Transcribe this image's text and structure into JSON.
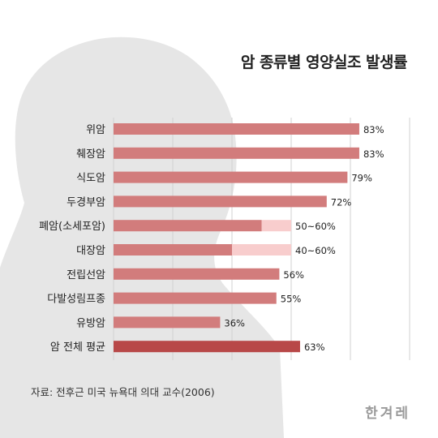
{
  "chart_data": {
    "type": "bar",
    "orientation": "horizontal",
    "title": "암 종류별 영양실조 발생률",
    "categories": [
      "위암",
      "췌장암",
      "식도암",
      "두경부암",
      "폐암(소세포암)",
      "대장암",
      "전립선암",
      "다발성림프종",
      "유방암",
      "암 전체 평균"
    ],
    "series": [
      {
        "values": [
          83,
          83,
          79,
          72,
          50,
          40,
          56,
          55,
          36,
          63
        ],
        "range_max": [
          null,
          null,
          null,
          null,
          60,
          60,
          null,
          null,
          null,
          null
        ],
        "labels": [
          "83%",
          "83%",
          "79%",
          "72%",
          "50~60%",
          "40~60%",
          "56%",
          "55%",
          "36%",
          "63%"
        ]
      }
    ],
    "xlim": [
      0,
      100
    ],
    "x_gridlines": [
      0,
      20,
      40,
      60,
      80,
      100
    ],
    "grid": true,
    "colors": {
      "bar": "#d27c7c",
      "range_extension": "#f8cdcd",
      "average_bar": "#b84848",
      "grid": "#d2d2d2"
    }
  },
  "source": "자료: 전후근 미국 뉴욕대 의대 교수(2006)",
  "logo": "한겨레"
}
